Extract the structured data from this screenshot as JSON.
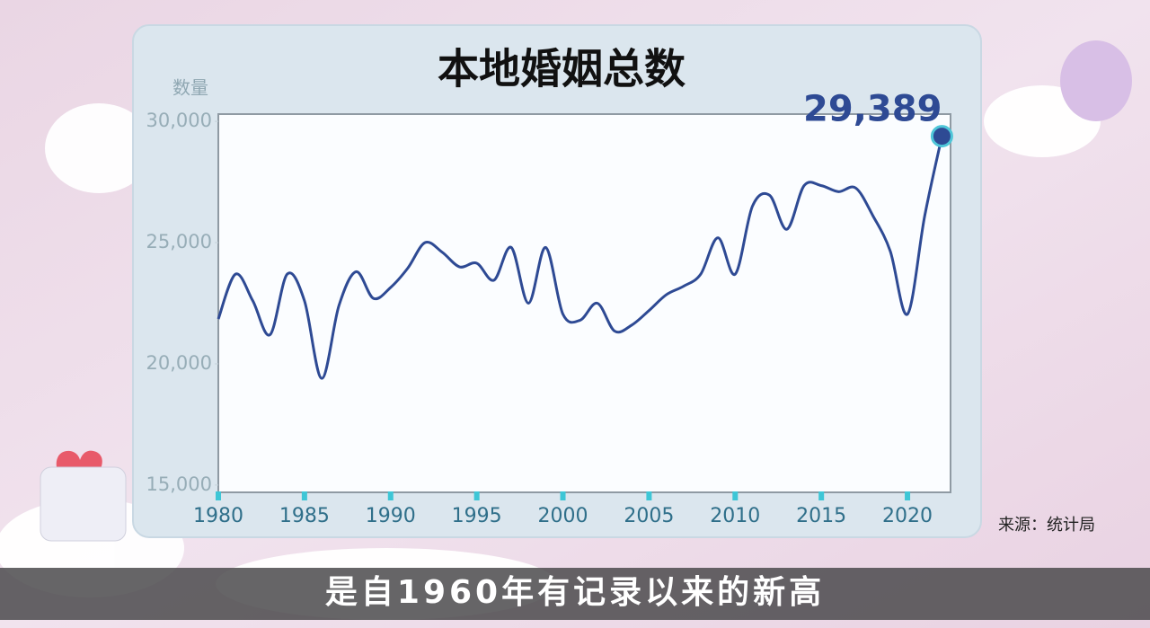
{
  "chart_data": {
    "type": "line",
    "title": "本地婚姻总数",
    "y_label": "数量",
    "source": "来源：统计局",
    "caption": "是自1960年有记录以来的新高",
    "x": [
      1980,
      1981,
      1982,
      1983,
      1984,
      1985,
      1986,
      1987,
      1988,
      1989,
      1990,
      1991,
      1992,
      1993,
      1994,
      1995,
      1996,
      1997,
      1998,
      1999,
      2000,
      2001,
      2002,
      2003,
      2004,
      2005,
      2006,
      2007,
      2008,
      2009,
      2010,
      2011,
      2012,
      2013,
      2014,
      2015,
      2016,
      2017,
      2018,
      2019,
      2020,
      2021,
      2022
    ],
    "series": [
      {
        "color": "#2e4a94",
        "values": [
          21850,
          23700,
          22600,
          21200,
          23700,
          22600,
          19400,
          22400,
          23800,
          22700,
          23150,
          23950,
          25000,
          24600,
          24000,
          24150,
          23450,
          24800,
          22500,
          24800,
          22050,
          21800,
          22500,
          21350,
          21600,
          22200,
          22850,
          23200,
          23700,
          25200,
          23700,
          26500,
          26950,
          25550,
          27350,
          27350,
          27100,
          27250,
          26100,
          24650,
          22050,
          26100,
          29389
        ],
        "value_labels": [
          null,
          null,
          null,
          null,
          null,
          null,
          null,
          null,
          null,
          null,
          null,
          null,
          null,
          null,
          null,
          null,
          null,
          null,
          null,
          null,
          null,
          null,
          null,
          null,
          null,
          null,
          null,
          null,
          null,
          null,
          null,
          null,
          null,
          null,
          null,
          null,
          null,
          null,
          null,
          null,
          null,
          null,
          "29,389"
        ]
      }
    ],
    "xlim": [
      1980,
      2022.5
    ],
    "ylim": [
      14700,
      30300
    ],
    "xticks": [
      1980,
      1985,
      1990,
      1995,
      2000,
      2005,
      2010,
      2015,
      2020
    ],
    "yticks": [
      {
        "value": 15000,
        "label": "15,000"
      },
      {
        "value": 20000,
        "label": "20,000"
      },
      {
        "value": 25000,
        "label": "25,000"
      },
      {
        "value": 30000,
        "label": "30,000"
      }
    ]
  }
}
